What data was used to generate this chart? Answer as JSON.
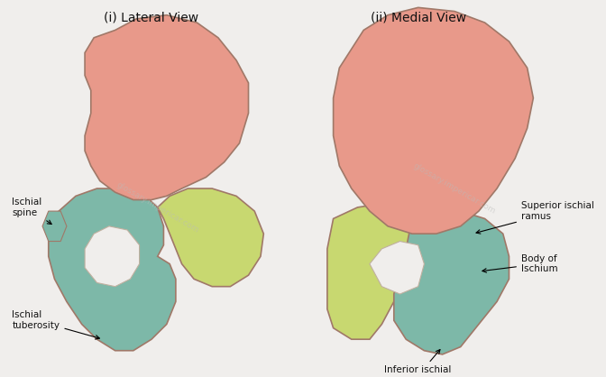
{
  "bg_color": "#f0eeec",
  "title_left": "(i) Lateral View",
  "title_right": "(ii) Medial View",
  "watermark": "glossary.impericar.com",
  "ilium_color": "#e8998a",
  "ischium_color": "#7db8a8",
  "pubis_color": "#c8d870",
  "outline_color": "#a07868",
  "font_size_title": 10,
  "font_size_label": 7.5,
  "label_color": "#111111"
}
